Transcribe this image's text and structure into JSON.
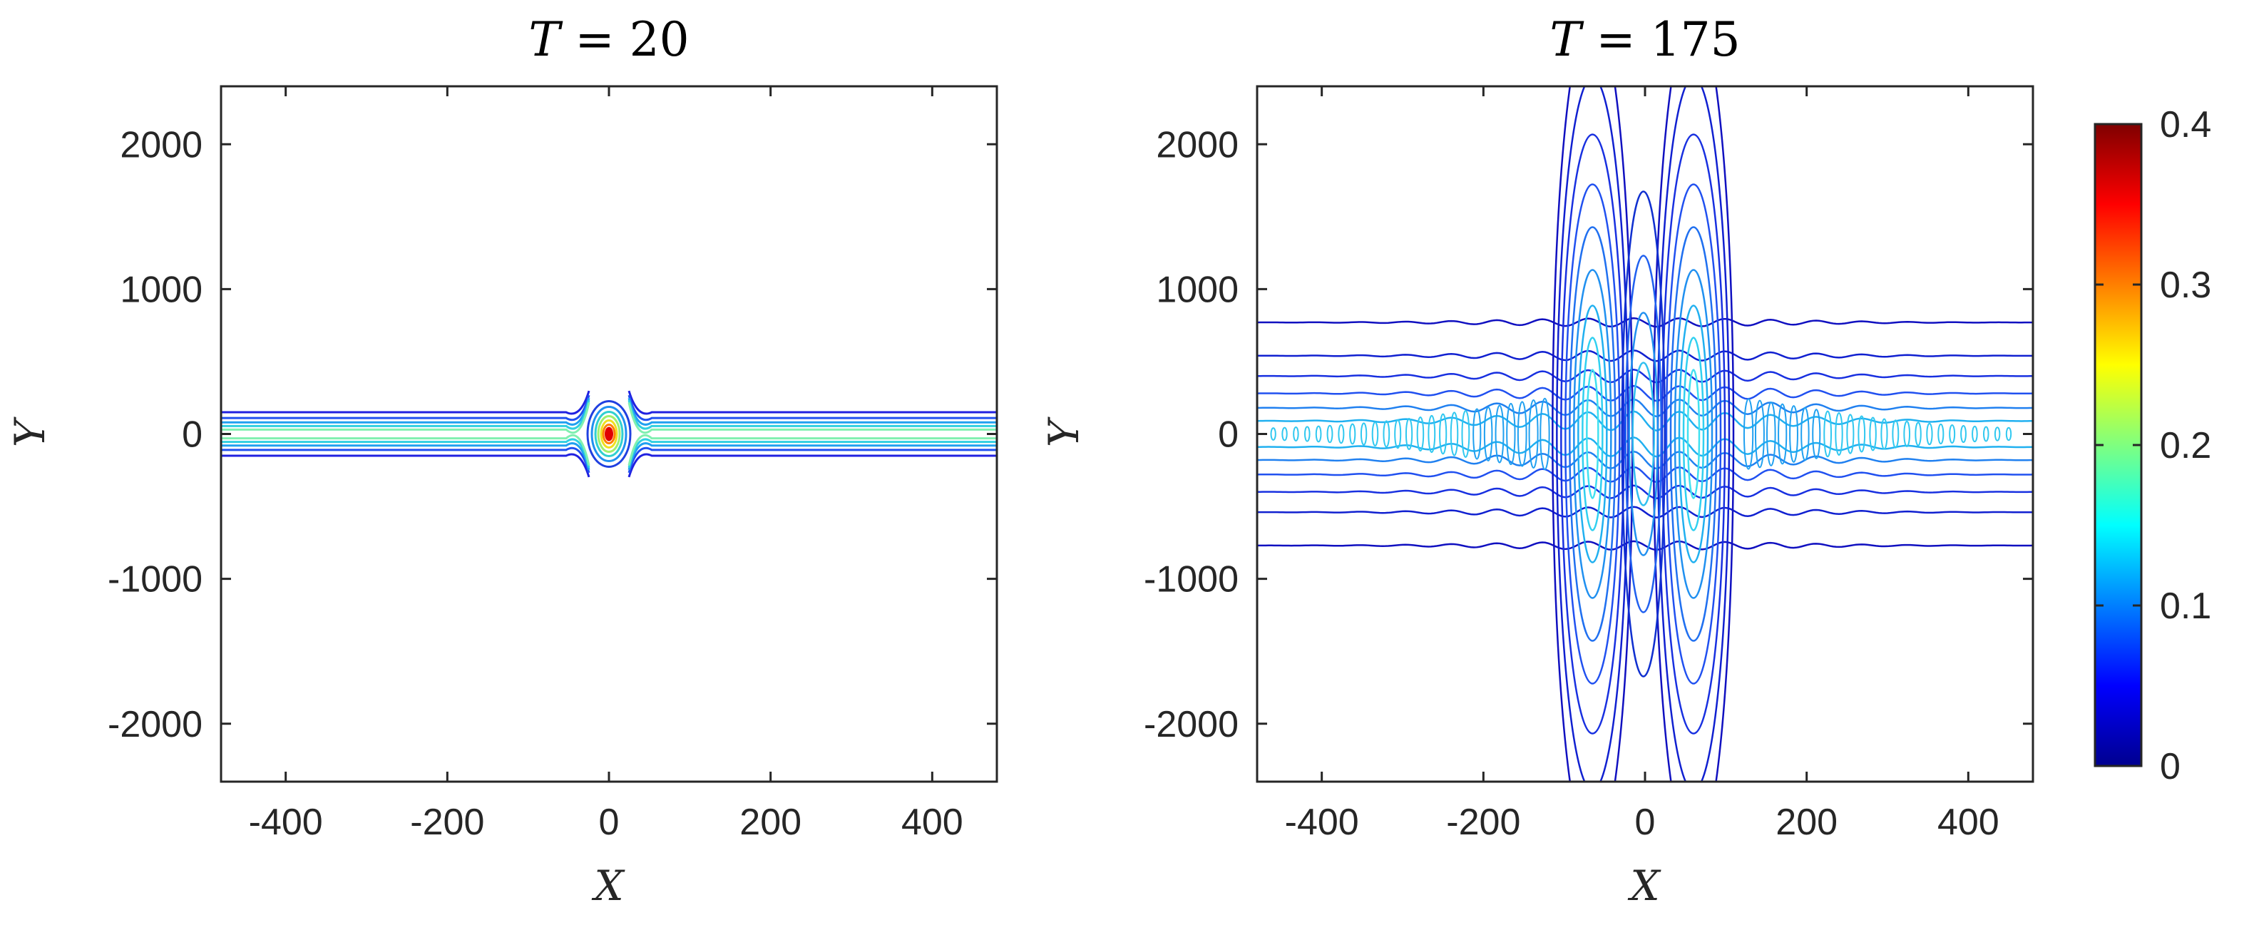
{
  "chart_data": [
    {
      "type": "contour",
      "title_var": "T",
      "title_eq": " = ",
      "title_value": "20",
      "xlabel": "X",
      "ylabel": "Y",
      "xlim": [
        -480,
        480
      ],
      "ylim": [
        -2400,
        2400
      ],
      "xticks": [
        "-400",
        "-200",
        "0",
        "200",
        "400"
      ],
      "xtick_values": [
        -400,
        -200,
        0,
        200,
        400
      ],
      "yticks": [
        "2000",
        "1000",
        "0",
        "-1000",
        "-2000"
      ],
      "ytick_values": [
        2000,
        1000,
        0,
        -1000,
        -2000
      ],
      "band": {
        "levels": [
          {
            "y": 150,
            "color": "#2020e0"
          },
          {
            "y": 110,
            "color": "#2050f0"
          },
          {
            "y": 80,
            "color": "#20a0f0"
          },
          {
            "y": 55,
            "color": "#30d0e0"
          },
          {
            "y": 30,
            "color": "#80f0b0"
          }
        ]
      },
      "peak": {
        "x": 0,
        "y": 0,
        "max_amplitude": 0.4
      }
    },
    {
      "type": "contour",
      "title_var": "T",
      "title_eq": " = ",
      "title_value": "175",
      "xlabel": "X",
      "ylabel": "Y",
      "xlim": [
        -480,
        480
      ],
      "ylim": [
        -2400,
        2400
      ],
      "xticks": [
        "-400",
        "-200",
        "0",
        "200",
        "400"
      ],
      "xtick_values": [
        -400,
        -200,
        0,
        200,
        400
      ],
      "yticks": [
        "2000",
        "1000",
        "0",
        "-1000",
        "-2000"
      ],
      "ytick_values": [
        2000,
        1000,
        0,
        -1000,
        -2000
      ],
      "band": {
        "levels": [
          {
            "y": 770,
            "color": "#1010c0"
          },
          {
            "y": 540,
            "color": "#1020d0"
          },
          {
            "y": 400,
            "color": "#1830e0"
          },
          {
            "y": 280,
            "color": "#2050f0"
          },
          {
            "y": 180,
            "color": "#2080f0"
          },
          {
            "y": 90,
            "color": "#20b0f0"
          }
        ]
      },
      "lobes": [
        {
          "x": -65,
          "color": "#1020d0"
        },
        {
          "x": 60,
          "color": "#1020d0"
        }
      ]
    }
  ],
  "colorbar": {
    "min": 0,
    "max": 0.4,
    "ticks": [
      "0.4",
      "0.3",
      "0.2",
      "0.1",
      "0"
    ],
    "tick_values": [
      0.4,
      0.3,
      0.2,
      0.1,
      0
    ],
    "colormap": [
      "#00008f",
      "#0000ff",
      "#007fff",
      "#00ffff",
      "#7fff7f",
      "#ffff00",
      "#ff7f00",
      "#ff0000",
      "#7f0000"
    ]
  }
}
